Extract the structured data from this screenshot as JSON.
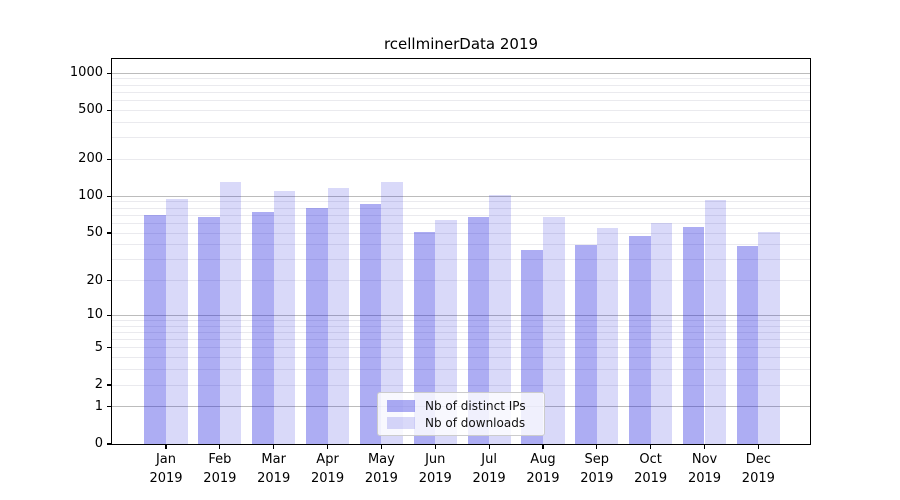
{
  "title": "rcellminerData 2019",
  "chart_data": {
    "type": "bar",
    "title": "rcellminerData 2019",
    "xlabel": "",
    "ylabel": "",
    "categories": [
      "Jan",
      "Feb",
      "Mar",
      "Apr",
      "May",
      "Jun",
      "Jul",
      "Aug",
      "Sep",
      "Oct",
      "Nov",
      "Dec"
    ],
    "category_year": "2019",
    "series": [
      {
        "name": "Nb of distinct IPs",
        "color_hex_on_white": "#abaff3",
        "fill": "rgba(20,20,220,0.35)",
        "values": [
          70,
          68,
          74,
          81,
          86,
          51,
          68,
          36,
          40,
          47,
          56,
          39
        ]
      },
      {
        "name": "Nb of downloads",
        "color_hex_on_white": "#dadaf9",
        "fill": "rgba(20,20,220,0.16)",
        "values": [
          96,
          130,
          111,
          116,
          131,
          64,
          102,
          68,
          55,
          61,
          93,
          51
        ]
      }
    ],
    "yscale": "log1p",
    "yticks": [
      0,
      1,
      2,
      5,
      10,
      20,
      50,
      100,
      200,
      500,
      1000
    ],
    "major_grid_values": [
      1,
      10,
      100,
      1000
    ],
    "minor_grid_decades": [
      1,
      10,
      100
    ],
    "ylim": [
      0,
      1300
    ],
    "grid": true,
    "legend_position": "lower center",
    "major_grid_color": "#bcbcbc",
    "minor_grid_color": "#eaeaee"
  }
}
